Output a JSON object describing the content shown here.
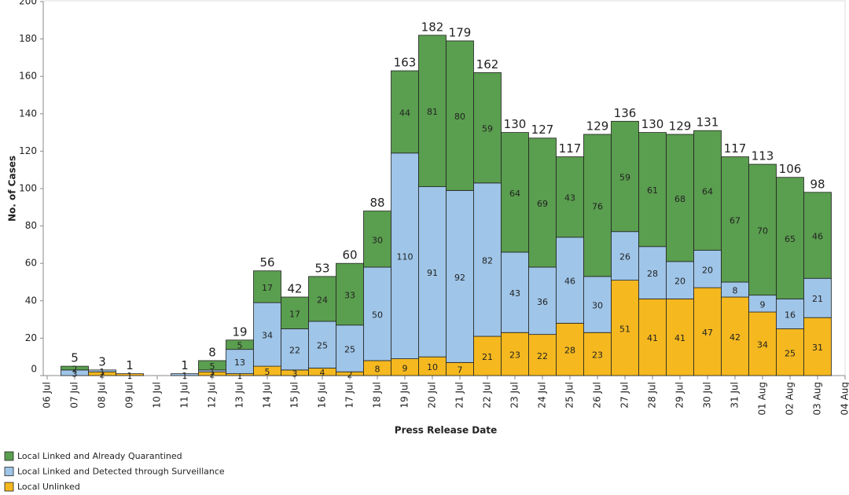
{
  "chart_data": {
    "type": "stacked_bar",
    "y_label": "No. of Cases",
    "x_label": "Press Release Date",
    "categories": [
      "06 Jul",
      "07 Jul",
      "08 Jul",
      "09 Jul",
      "10 Jul",
      "11 Jul",
      "12 Jul",
      "13 Jul",
      "14 Jul",
      "15 Jul",
      "16 Jul",
      "17 Jul",
      "18 Jul",
      "19 Jul",
      "20 Jul",
      "21 Jul",
      "22 Jul",
      "23 Jul",
      "24 Jul",
      "25 Jul",
      "26 Jul",
      "27 Jul",
      "28 Jul",
      "29 Jul",
      "30 Jul",
      "31 Jul",
      "01 Aug",
      "02 Aug",
      "03 Aug",
      "04 Aug"
    ],
    "series": [
      {
        "name": "Local Linked and Already Quarantined",
        "color": "#5a9e4f",
        "values": [
          null,
          2,
          null,
          null,
          null,
          null,
          5,
          5,
          17,
          17,
          24,
          33,
          30,
          44,
          81,
          80,
          59,
          64,
          69,
          43,
          76,
          59,
          61,
          68,
          64,
          67,
          70,
          65,
          46,
          null
        ]
      },
      {
        "name": "Local Linked and Detected through Surveillance",
        "color": "#9fc5e8",
        "values": [
          null,
          3,
          1,
          null,
          null,
          1,
          1,
          13,
          34,
          22,
          25,
          25,
          50,
          110,
          91,
          92,
          82,
          43,
          36,
          46,
          30,
          26,
          28,
          20,
          20,
          8,
          9,
          16,
          21,
          null
        ]
      },
      {
        "name": "Local Unlinked",
        "color": "#f5b81f",
        "values": [
          null,
          null,
          2,
          1,
          null,
          null,
          2,
          1,
          5,
          3,
          4,
          2,
          8,
          9,
          10,
          7,
          21,
          23,
          22,
          28,
          23,
          51,
          41,
          41,
          47,
          42,
          34,
          25,
          31,
          null
        ]
      }
    ],
    "totals": [
      null,
      5,
      3,
      1,
      null,
      1,
      8,
      19,
      56,
      42,
      53,
      60,
      88,
      163,
      182,
      179,
      162,
      130,
      127,
      117,
      129,
      136,
      130,
      129,
      131,
      117,
      113,
      106,
      98,
      null
    ],
    "ylim": [
      0,
      200
    ],
    "yticks": [
      0,
      20,
      40,
      60,
      80,
      100,
      120,
      140,
      160,
      180,
      200
    ]
  }
}
